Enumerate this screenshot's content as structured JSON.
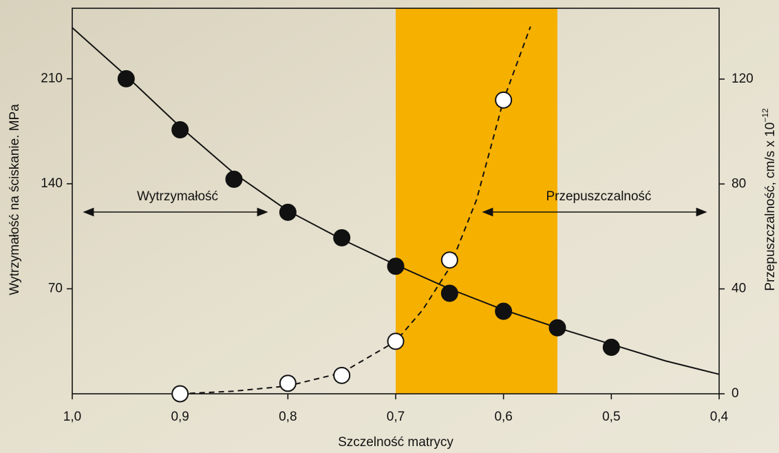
{
  "chart_data": {
    "type": "scatter",
    "x_label": "Szczelność matrycy",
    "y_label": "Wytrzymałość na ściskanie. MPa",
    "y2_label": "Przepuszczalność, cm/s x 10",
    "y2_label_exponent": "−12",
    "annotations": [
      "Wytrzymałość",
      "Przepuszczalność"
    ],
    "xlim": [
      1.0,
      0.4
    ],
    "xticks": [
      {
        "value": 1.0,
        "label": "1,0"
      },
      {
        "value": 0.9,
        "label": "0,9"
      },
      {
        "value": 0.8,
        "label": "0,8"
      },
      {
        "value": 0.7,
        "label": "0,7"
      },
      {
        "value": 0.6,
        "label": "0,6"
      },
      {
        "value": 0.5,
        "label": "0,5"
      },
      {
        "value": 0.4,
        "label": "0,4"
      }
    ],
    "ylim": [
      0,
      257
    ],
    "yticks": [
      70,
      140,
      210
    ],
    "y2lim": [
      0,
      147
    ],
    "y2ticks": [
      0,
      40,
      80,
      120
    ],
    "shaded_range": [
      0.7,
      0.55
    ],
    "shaded_color": "#f6b000",
    "series": [
      {
        "mode": "marker-filled",
        "color": "#111111",
        "axis": "y",
        "x": [
          0.95,
          0.9,
          0.85,
          0.8,
          0.75,
          0.7,
          0.65,
          0.6,
          0.55,
          0.5
        ],
        "values": [
          210,
          176,
          143,
          121,
          104,
          85,
          67,
          55,
          44,
          31
        ]
      },
      {
        "mode": "line",
        "color": "#111111",
        "axis": "y",
        "x": [
          1.0,
          0.95,
          0.9,
          0.85,
          0.8,
          0.75,
          0.7,
          0.65,
          0.6,
          0.55,
          0.5,
          0.45,
          0.4
        ],
        "values": [
          244,
          212,
          178,
          147,
          122,
          103,
          86,
          70,
          56,
          44,
          33,
          22,
          13
        ]
      },
      {
        "mode": "marker-open",
        "color": "#111111",
        "axis": "y2",
        "x": [
          0.9,
          0.8,
          0.75,
          0.7,
          0.65,
          0.6
        ],
        "values": [
          0,
          4,
          7,
          20,
          51,
          112
        ]
      },
      {
        "mode": "dashed",
        "color": "#111111",
        "axis": "y2",
        "x": [
          0.9,
          0.85,
          0.8,
          0.75,
          0.7,
          0.675,
          0.65,
          0.625,
          0.6,
          0.575
        ],
        "values": [
          0,
          1,
          3,
          8,
          20,
          32,
          48,
          74,
          112,
          140
        ]
      }
    ]
  }
}
